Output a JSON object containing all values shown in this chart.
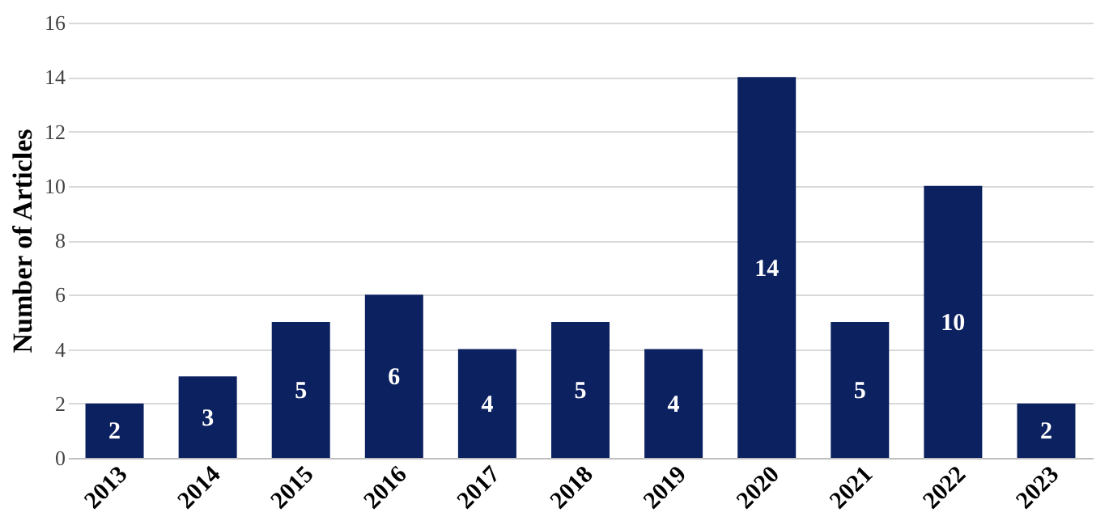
{
  "chart_data": {
    "type": "bar",
    "ylabel": "Number of Articles",
    "categories": [
      "2013",
      "2014",
      "2015",
      "2016",
      "2017",
      "2018",
      "2019",
      "2020",
      "2021",
      "2022",
      "2023"
    ],
    "values": [
      2,
      3,
      5,
      6,
      4,
      5,
      4,
      14,
      5,
      10,
      2
    ],
    "color": "#0c2160",
    "ylim": [
      0,
      16
    ],
    "yticks": [
      0,
      2,
      4,
      6,
      8,
      10,
      12,
      14,
      16
    ],
    "grid": "y",
    "data_labels": true
  }
}
